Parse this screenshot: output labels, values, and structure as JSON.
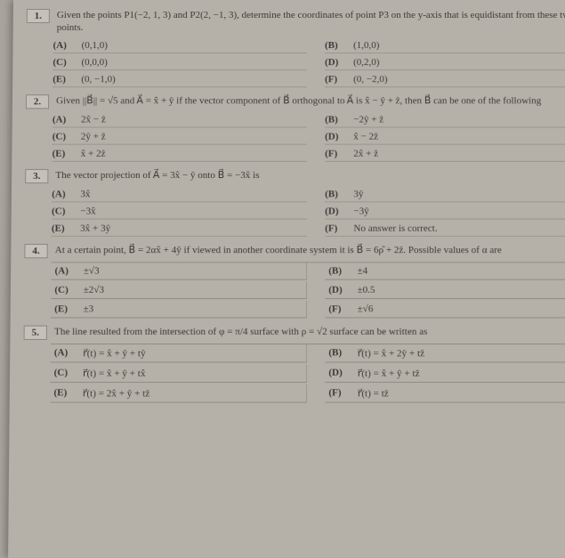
{
  "questions": [
    {
      "num": "1.",
      "text": "Given the points P1(−2, 1, 3) and P2(2, −1, 3), determine the coordinates of point P3 on the y-axis that is equidistant from these two points.",
      "options": {
        "A": "(0,1,0)",
        "B": "(1,0,0)",
        "C": "(0,0,0)",
        "D": "(0,2,0)",
        "E": "(0, −1,0)",
        "F": "(0, −2,0)"
      }
    },
    {
      "num": "2.",
      "text": "Given ||B⃗|| = √5 and A⃗ = x̂ + ŷ if the vector component of B⃗ orthogonal to A⃗ is x̂ − ŷ + ẑ, then B⃗ can be one of the following",
      "options": {
        "A": "2x̂ − ẑ",
        "B": "−2ŷ + ẑ",
        "C": "2ŷ + ẑ",
        "D": "x̂ − 2ẑ",
        "E": "x̂ + 2ẑ",
        "F": "2x̂ + ẑ"
      }
    },
    {
      "num": "3.",
      "text": "The vector projection of A⃗ = 3x̂ − ŷ onto B⃗ = −3x̂ is",
      "options": {
        "A": "3x̂",
        "B": "3ŷ",
        "C": "−3x̂",
        "D": "−3ŷ",
        "E": "3x̂ + 3ŷ",
        "F": "No answer is correct."
      }
    },
    {
      "num": "4.",
      "text": "At a certain point, B⃗ = 2αx̂ + 4ŷ if viewed in another coordinate system it is B⃗ = 6ρ̂ + 2ẑ. Possible values of α are",
      "options": {
        "A": "±√3",
        "B": "±4",
        "C": "±2√3",
        "D": "±0.5",
        "E": "±3",
        "F": "±√6"
      }
    },
    {
      "num": "5.",
      "text": "The line resulted from the intersection of φ = π/4 surface with ρ = √2 surface can be written as",
      "options": {
        "A": "r⃗(t) = x̂ + ŷ + tŷ",
        "B": "r⃗(t) = x̂ + 2ŷ + tẑ",
        "C": "r⃗(t) = x̂ + ŷ + tx̂",
        "D": "r⃗(t) = x̂ + ŷ + tẑ",
        "E": "r⃗(t) = 2x̂ + ŷ + tẑ",
        "F": "r⃗(t) = tẑ"
      }
    }
  ]
}
